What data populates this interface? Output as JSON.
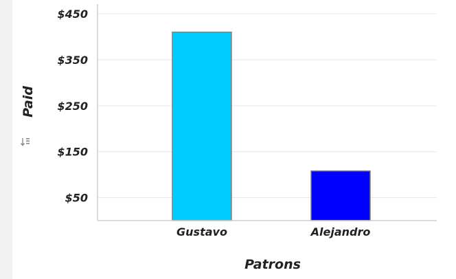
{
  "chart_data": {
    "type": "bar",
    "categories": [
      "Gustavo",
      "Alejandro"
    ],
    "values": [
      410,
      108
    ],
    "xlabel": "Patrons",
    "ylabel": "Paid",
    "ylim": [
      0,
      480
    ],
    "yticks": [
      50,
      150,
      250,
      350,
      450
    ],
    "ytick_labels": [
      "$50",
      "$150",
      "$250",
      "$350",
      "$450"
    ],
    "bar_colors": [
      "#00ccff",
      "#0000ff"
    ],
    "bar_stroke": "#808080",
    "grid": true,
    "legend": "none"
  },
  "icons": {
    "sort": "sort-icon"
  }
}
